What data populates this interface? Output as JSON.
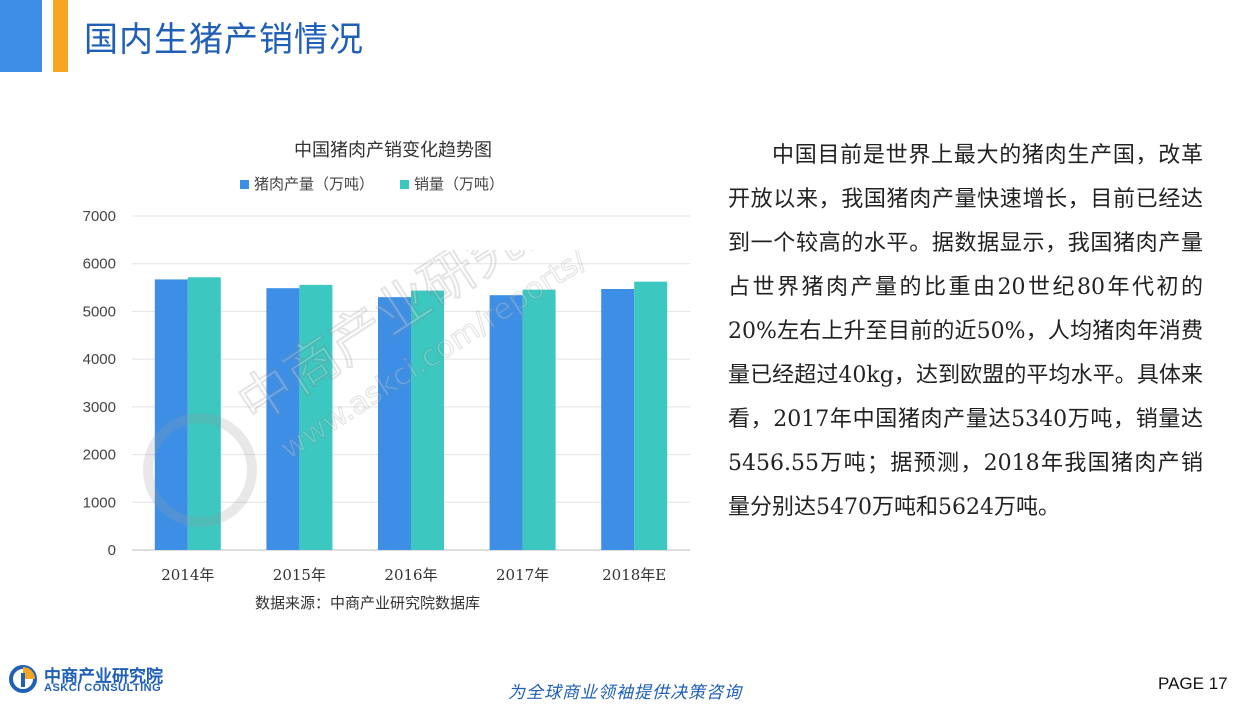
{
  "header": {
    "title": "国内生猪产销情况"
  },
  "chart_data": {
    "type": "bar",
    "title": "中国猪肉产销变化趋势图",
    "source": "数据来源：中商产业研究院数据库",
    "categories": [
      "2014年",
      "2015年",
      "2016年",
      "2017年",
      "2018年E"
    ],
    "series": [
      {
        "name": "猪肉产量（万吨）",
        "color": "#3d8fe6",
        "values": [
          5671,
          5487,
          5299,
          5340,
          5470
        ]
      },
      {
        "name": "销量（万吨）",
        "color": "#3cc7c0",
        "values": [
          5716,
          5557,
          5437,
          5456.55,
          5624
        ]
      }
    ],
    "ylim": [
      0,
      7000
    ],
    "yticks": [
      0,
      1000,
      2000,
      3000,
      4000,
      5000,
      6000,
      7000
    ],
    "grid": true,
    "legend": "top"
  },
  "body": {
    "paragraph": "中国目前是世界上最大的猪肉生产国，改革开放以来，我国猪肉产量快速增长，目前已经达到一个较高的水平。据数据显示，我国猪肉产量占世界猪肉产量的比重由20世纪80年代初的20%左右上升至目前的近50%，人均猪肉年消费量已经超过40kg，达到欧盟的平均水平。具体来看，2017年中国猪肉产量达5340万吨，销量达5456.55万吨；据预测，2018年我国猪肉产销量分别达5470万吨和5624万吨。"
  },
  "watermark": {
    "brand": "中商产业研究院",
    "url": "www.askci.com/reports/"
  },
  "footer": {
    "logo_cn": "中商产业研究院",
    "logo_en": "ASKCI CONSULTING",
    "slogan": "为全球商业领袖提供决策咨询",
    "page": "PAGE 17"
  },
  "colors": {
    "accent_blue": "#3d8fe6",
    "accent_orange": "#f5a623",
    "brand_blue": "#1f5fb8"
  }
}
